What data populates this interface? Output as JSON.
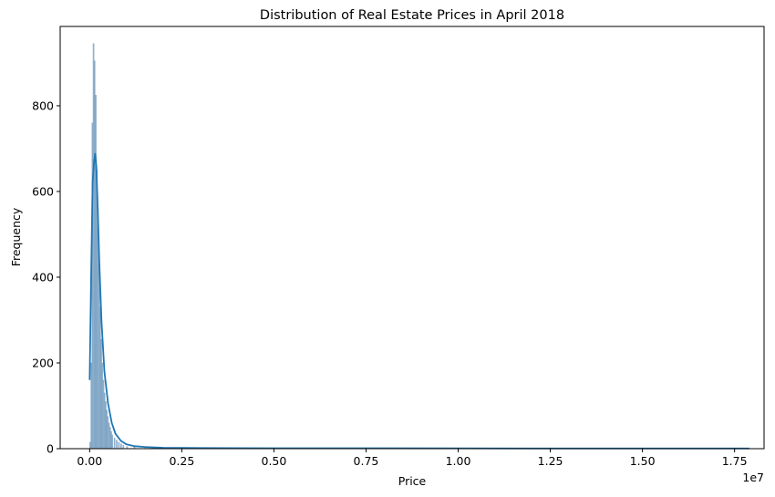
{
  "chart_data": {
    "type": "histogram",
    "title": "Distribution of Real Estate Prices in April 2018",
    "xlabel": "Price",
    "ylabel": "Frequency",
    "x_offset_label": "1e7",
    "xlim": [
      -800000,
      18300000
    ],
    "ylim": [
      0,
      985
    ],
    "x_ticks": [
      0,
      2500000,
      5000000,
      7500000,
      10000000,
      12500000,
      15000000,
      17500000
    ],
    "x_tick_labels": [
      "0.00",
      "0.25",
      "0.50",
      "0.75",
      "1.00",
      "1.25",
      "1.50",
      "1.75"
    ],
    "y_ticks": [
      0,
      200,
      400,
      600,
      800
    ],
    "y_tick_labels": [
      "0",
      "200",
      "400",
      "600",
      "800"
    ],
    "grid": false,
    "legend": "none",
    "bar_color": "#7fa7c8",
    "bar_edge_color": "#5f8aaf",
    "kde_color": "#1f77b4",
    "bins": {
      "x": [
        0,
        30000,
        60000,
        90000,
        120000,
        150000,
        180000,
        210000,
        240000,
        270000,
        300000,
        330000,
        360000,
        390000,
        420000,
        450000,
        480000,
        510000,
        540000,
        570000,
        600000,
        660000,
        720000,
        780000,
        840000,
        900000,
        1000000,
        1200000,
        1500000,
        2000000,
        2500000,
        3000000
      ],
      "heights": [
        15,
        200,
        760,
        945,
        905,
        825,
        650,
        520,
        430,
        330,
        255,
        200,
        160,
        130,
        110,
        90,
        75,
        60,
        50,
        40,
        32,
        25,
        20,
        15,
        11,
        8,
        5,
        4,
        3,
        2,
        1,
        1
      ],
      "width": 30000
    },
    "kde": {
      "x": [
        0,
        40000,
        80000,
        120000,
        150000,
        180000,
        220000,
        260000,
        320000,
        400000,
        500000,
        600000,
        700000,
        850000,
        1000000,
        1200000,
        1500000,
        2000000,
        3000000,
        5000000,
        8000000,
        12000000,
        17900000
      ],
      "y": [
        160,
        400,
        620,
        670,
        688,
        660,
        560,
        440,
        300,
        180,
        105,
        60,
        35,
        18,
        10,
        6,
        4,
        2,
        1.5,
        1,
        1,
        0.5,
        0.5
      ]
    }
  }
}
